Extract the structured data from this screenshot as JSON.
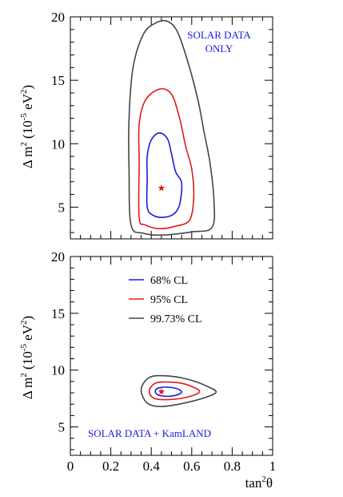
{
  "chart_data": [
    {
      "type": "line",
      "title": "",
      "annotation": [
        "SOLAR DATA",
        "ONLY"
      ],
      "xlabel": "",
      "ylabel": "Δ m² (10⁻⁵ eV²)",
      "xlim": [
        0,
        1
      ],
      "ylim": [
        2.5,
        20
      ],
      "y_ticks": [
        "5",
        "10",
        "15",
        "20"
      ],
      "best_fit": {
        "x": 0.45,
        "y": 6.5
      },
      "series": [
        {
          "name": "68% CL",
          "color": "#1a1adf",
          "points": [
            [
              0.38,
              5.0
            ],
            [
              0.38,
              7.2
            ],
            [
              0.38,
              9.0
            ],
            [
              0.4,
              10.3
            ],
            [
              0.44,
              10.85
            ],
            [
              0.48,
              10.4
            ],
            [
              0.5,
              9.2
            ],
            [
              0.52,
              7.8
            ],
            [
              0.55,
              6.9
            ],
            [
              0.54,
              5.2
            ],
            [
              0.51,
              4.45
            ],
            [
              0.46,
              4.2
            ],
            [
              0.41,
              4.35
            ],
            [
              0.38,
              5.0
            ]
          ]
        },
        {
          "name": "95% CL",
          "color": "#e01a1a",
          "points": [
            [
              0.34,
              4.2
            ],
            [
              0.34,
              8.5
            ],
            [
              0.34,
              11.5
            ],
            [
              0.37,
              13.4
            ],
            [
              0.44,
              14.3
            ],
            [
              0.5,
              13.9
            ],
            [
              0.54,
              12.0
            ],
            [
              0.57,
              9.8
            ],
            [
              0.6,
              8.0
            ],
            [
              0.61,
              5.8
            ],
            [
              0.59,
              4.0
            ],
            [
              0.52,
              3.5
            ],
            [
              0.44,
              3.3
            ],
            [
              0.37,
              3.6
            ],
            [
              0.34,
              4.2
            ]
          ]
        },
        {
          "name": "99.73% CL",
          "color": "#444444",
          "points": [
            [
              0.3,
              3.6
            ],
            [
              0.29,
              8.0
            ],
            [
              0.29,
              12.0
            ],
            [
              0.31,
              16.0
            ],
            [
              0.36,
              18.6
            ],
            [
              0.42,
              19.5
            ],
            [
              0.48,
              19.65
            ],
            [
              0.53,
              18.8
            ],
            [
              0.58,
              16.5
            ],
            [
              0.63,
              13.5
            ],
            [
              0.66,
              11.0
            ],
            [
              0.69,
              8.5
            ],
            [
              0.71,
              5.5
            ],
            [
              0.7,
              3.4
            ],
            [
              0.6,
              3.05
            ],
            [
              0.45,
              2.8
            ],
            [
              0.36,
              2.95
            ],
            [
              0.3,
              3.6
            ]
          ]
        }
      ]
    },
    {
      "type": "line",
      "title": "",
      "annotation": [
        "SOLAR DATA + KamLAND"
      ],
      "xlabel": "tan²θ",
      "ylabel": "Δ m² (10⁻⁵ eV²)",
      "xlim": [
        0,
        1
      ],
      "ylim": [
        2.5,
        20
      ],
      "x_ticks": [
        "0",
        "0.2",
        "0.4",
        "0.6",
        "0.8",
        "1"
      ],
      "y_ticks": [
        "5",
        "10",
        "15",
        "20"
      ],
      "best_fit": {
        "x": 0.45,
        "y": 8.1
      },
      "legend_position": "top-center",
      "series": [
        {
          "name": "68% CL",
          "color": "#1a1adf",
          "points": [
            [
              0.42,
              8.2
            ],
            [
              0.44,
              8.45
            ],
            [
              0.48,
              8.5
            ],
            [
              0.53,
              8.35
            ],
            [
              0.55,
              8.05
            ],
            [
              0.52,
              7.78
            ],
            [
              0.47,
              7.7
            ],
            [
              0.43,
              7.85
            ],
            [
              0.42,
              8.2
            ]
          ]
        },
        {
          "name": "95% CL",
          "color": "#e01a1a",
          "points": [
            [
              0.39,
              8.2
            ],
            [
              0.42,
              8.85
            ],
            [
              0.48,
              8.95
            ],
            [
              0.56,
              8.8
            ],
            [
              0.63,
              8.3
            ],
            [
              0.63,
              7.95
            ],
            [
              0.56,
              7.55
            ],
            [
              0.47,
              7.4
            ],
            [
              0.41,
              7.55
            ],
            [
              0.39,
              8.2
            ]
          ]
        },
        {
          "name": "99.73% CL",
          "color": "#444444",
          "points": [
            [
              0.35,
              8.3
            ],
            [
              0.39,
              9.35
            ],
            [
              0.47,
              9.5
            ],
            [
              0.58,
              9.2
            ],
            [
              0.68,
              8.55
            ],
            [
              0.72,
              8.05
            ],
            [
              0.66,
              7.55
            ],
            [
              0.55,
              7.05
            ],
            [
              0.45,
              6.8
            ],
            [
              0.38,
              7.1
            ],
            [
              0.35,
              8.3
            ]
          ]
        }
      ]
    }
  ]
}
